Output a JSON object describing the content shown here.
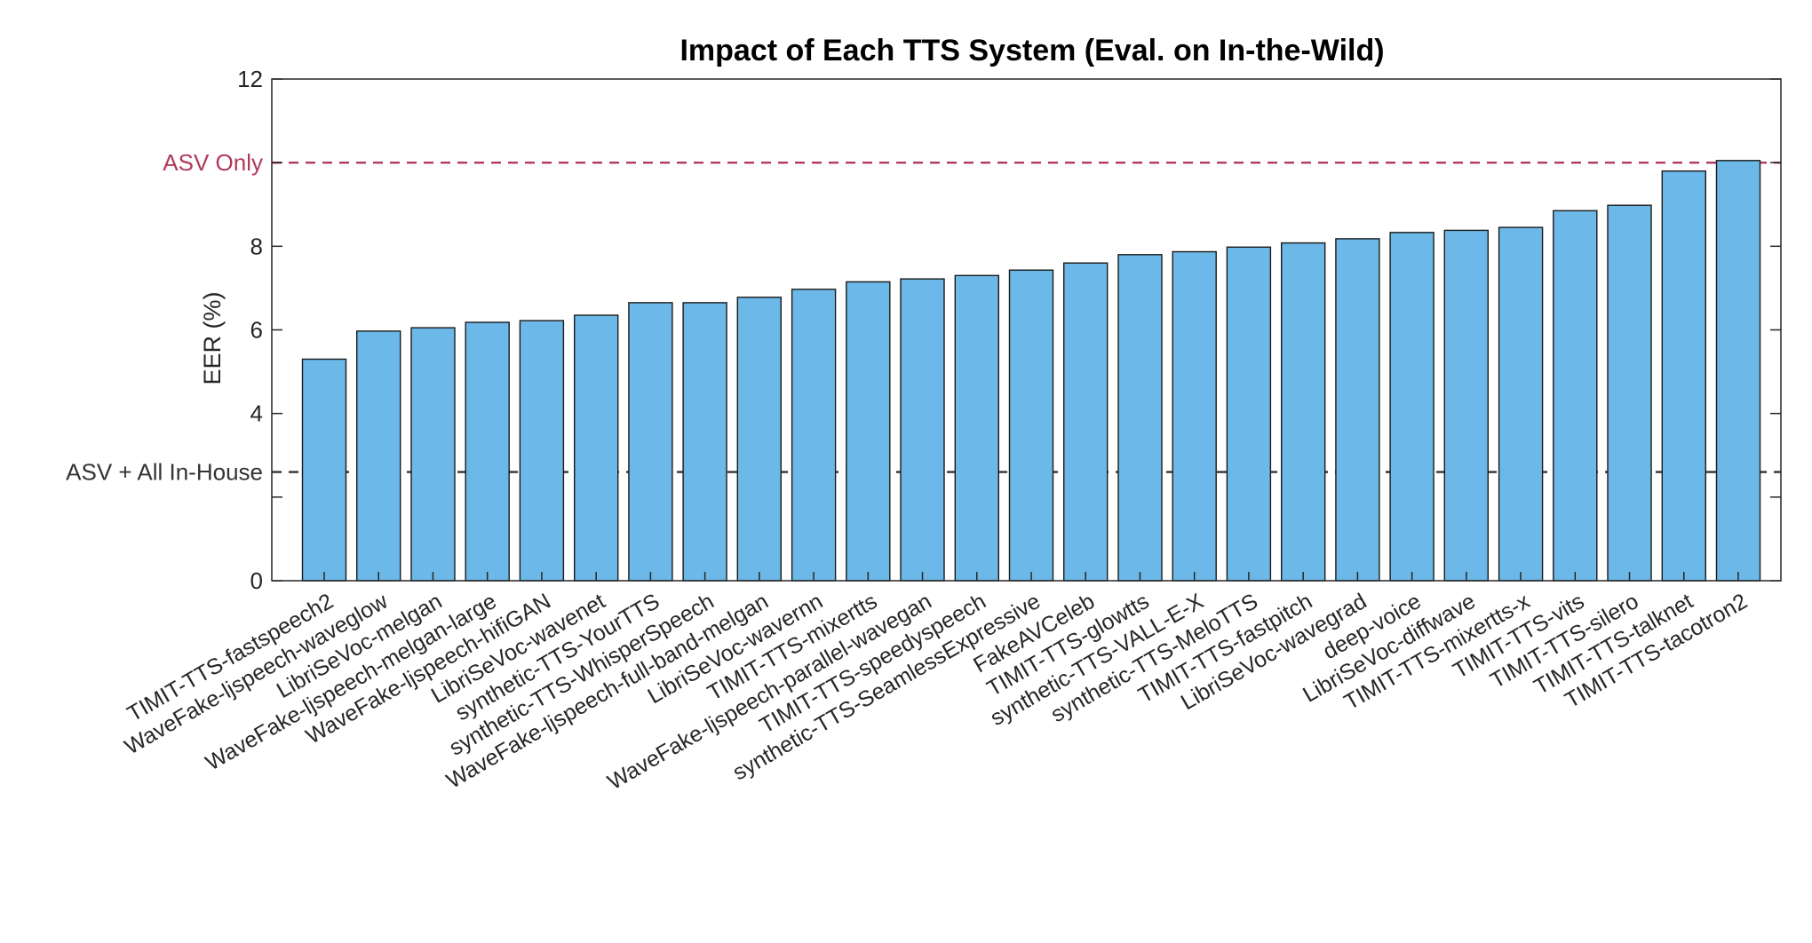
{
  "chart_data": {
    "type": "bar",
    "title": "Impact of Each TTS System (Eval. on In-the-Wild)",
    "xlabel": "",
    "ylabel": "EER (%)",
    "ylim": [
      0,
      12
    ],
    "yticks": [
      0,
      2,
      4,
      6,
      8,
      10,
      12
    ],
    "yticklabels": [
      "0",
      "",
      "4",
      "6",
      "8",
      "",
      "12"
    ],
    "bar_color": "#6cb8e8",
    "grid": false,
    "categories": [
      "TIMIT-TTS-fastspeech2",
      "WaveFake-ljspeech-waveglow",
      "LibriSeVoc-melgan",
      "WaveFake-ljspeech-melgan-large",
      "WaveFake-ljspeech-hifiGAN",
      "LibriSeVoc-wavenet",
      "synthetic-TTS-YourTTS",
      "synthetic-TTS-WhisperSpeech",
      "WaveFake-ljspeech-full-band-melgan",
      "LibriSeVoc-wavernn",
      "TIMIT-TTS-mixertts",
      "WaveFake-ljspeech-parallel-wavegan",
      "TIMIT-TTS-speedyspeech",
      "synthetic-TTS-SeamlessExpressive",
      "FakeAVCeleb",
      "TIMIT-TTS-glowtts",
      "synthetic-TTS-VALL-E-X",
      "synthetic-TTS-MeloTTS",
      "TIMIT-TTS-fastpitch",
      "LibriSeVoc-wavegrad",
      "deep-voice",
      "LibriSeVoc-diffwave",
      "TIMIT-TTS-mixertts-x",
      "TIMIT-TTS-vits",
      "TIMIT-TTS-silero",
      "TIMIT-TTS-talknet",
      "TIMIT-TTS-tacotron2"
    ],
    "values": [
      5.3,
      5.97,
      6.05,
      6.18,
      6.22,
      6.35,
      6.65,
      6.65,
      6.78,
      6.97,
      7.15,
      7.22,
      7.3,
      7.43,
      7.6,
      7.8,
      7.87,
      7.98,
      8.08,
      8.18,
      8.33,
      8.38,
      8.45,
      8.85,
      8.98,
      9.8,
      10.05
    ],
    "reference_lines": [
      {
        "label": "ASV Only",
        "value": 10.0,
        "color": "#b03a5b"
      },
      {
        "label": "ASV + All In-House",
        "value": 2.6,
        "color": "#333333"
      }
    ]
  }
}
